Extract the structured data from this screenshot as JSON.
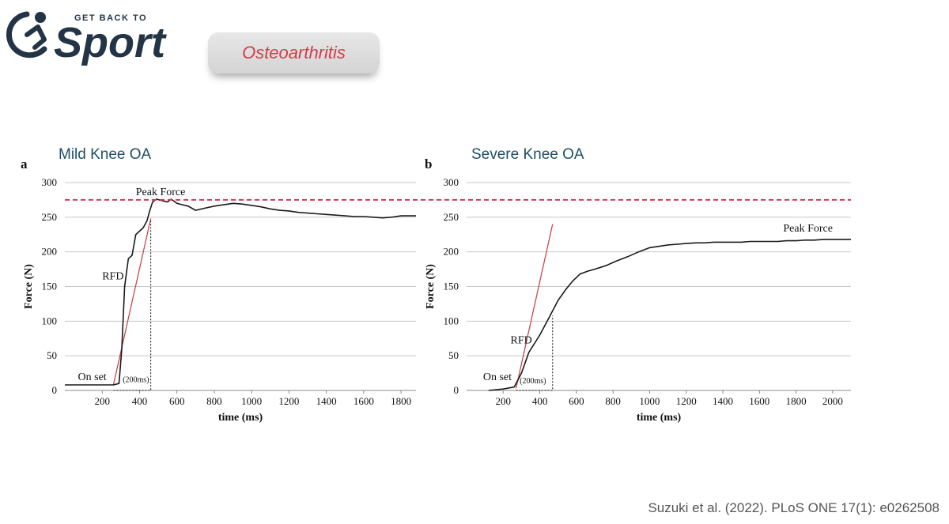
{
  "logo": {
    "small_text": "GET BACK TO",
    "big_text": "Sport"
  },
  "topic": "Osteoarthritis",
  "citation": "Suzuki et al. (2022). PLoS ONE 17(1): e0262508",
  "chart_data": [
    {
      "type": "line",
      "panel_letter": "a",
      "title": "Mild Knee OA",
      "xlabel": "time (ms)",
      "ylabel": "Force (N)",
      "xlim": [
        0,
        1880
      ],
      "ylim": [
        0,
        300
      ],
      "x_ticks": [
        200,
        400,
        600,
        800,
        1000,
        1200,
        1400,
        1600,
        1800
      ],
      "y_ticks": [
        0,
        50,
        100,
        150,
        200,
        250,
        300
      ],
      "grid": "horizontal",
      "series": [
        {
          "x": [
            0,
            100,
            200,
            260,
            290,
            305,
            320,
            340,
            360,
            380,
            400,
            420,
            440,
            455,
            470,
            490,
            520,
            550,
            570,
            600,
            630,
            660,
            700,
            750,
            800,
            850,
            900,
            950,
            1000,
            1050,
            1100,
            1150,
            1200,
            1250,
            1300,
            1350,
            1400,
            1450,
            1500,
            1550,
            1600,
            1650,
            1700,
            1750,
            1800,
            1880
          ],
          "y": [
            8,
            8,
            8,
            8,
            10,
            60,
            150,
            190,
            195,
            225,
            230,
            235,
            245,
            260,
            272,
            276,
            274,
            272,
            276,
            270,
            268,
            266,
            260,
            263,
            266,
            268,
            270,
            269,
            267,
            265,
            262,
            260,
            259,
            257,
            256,
            255,
            254,
            253,
            252,
            251,
            251,
            250,
            249,
            250,
            252,
            252
          ]
        }
      ],
      "rfd_line": {
        "x": [
          260,
          460
        ],
        "y": [
          8,
          248
        ]
      },
      "onset_window": {
        "x": [
          260,
          460
        ],
        "y_top": 248
      },
      "annotations": {
        "peak": "Peak Force",
        "rfd": "RFD",
        "onset": "On set",
        "window": "(200ms)"
      }
    },
    {
      "type": "line",
      "panel_letter": "b",
      "title": "Severe Knee OA",
      "xlabel": "time (ms)",
      "ylabel": "Force (N)",
      "xlim": [
        0,
        2100
      ],
      "ylim": [
        0,
        300
      ],
      "x_ticks": [
        200,
        400,
        600,
        800,
        1000,
        1200,
        1400,
        1600,
        1800,
        2000
      ],
      "y_ticks": [
        0,
        50,
        100,
        150,
        200,
        250,
        300
      ],
      "grid": "horizontal",
      "series": [
        {
          "x": [
            120,
            200,
            260,
            300,
            340,
            400,
            460,
            500,
            540,
            580,
            620,
            660,
            700,
            760,
            820,
            880,
            940,
            1000,
            1050,
            1100,
            1150,
            1200,
            1250,
            1300,
            1350,
            1400,
            1450,
            1500,
            1550,
            1600,
            1650,
            1700,
            1750,
            1800,
            1850,
            1900,
            1950,
            2000,
            2050,
            2100
          ],
          "y": [
            0,
            2,
            5,
            25,
            55,
            80,
            110,
            130,
            145,
            158,
            168,
            172,
            175,
            180,
            187,
            193,
            200,
            206,
            208,
            210,
            211,
            212,
            213,
            213,
            214,
            214,
            214,
            214,
            215,
            215,
            215,
            215,
            216,
            216,
            217,
            217,
            218,
            218,
            218,
            218
          ]
        }
      ],
      "rfd_line": {
        "x": [
          270,
          470
        ],
        "y": [
          3,
          240
        ]
      },
      "onset_window": {
        "x": [
          270,
          470
        ],
        "y_top": 108
      },
      "annotations": {
        "peak": "Peak Force",
        "rfd": "RFD",
        "onset": "On set",
        "window": "(200ms)"
      }
    }
  ],
  "reference_line": {
    "label": "",
    "value": 275,
    "color": "#d23c4a"
  }
}
